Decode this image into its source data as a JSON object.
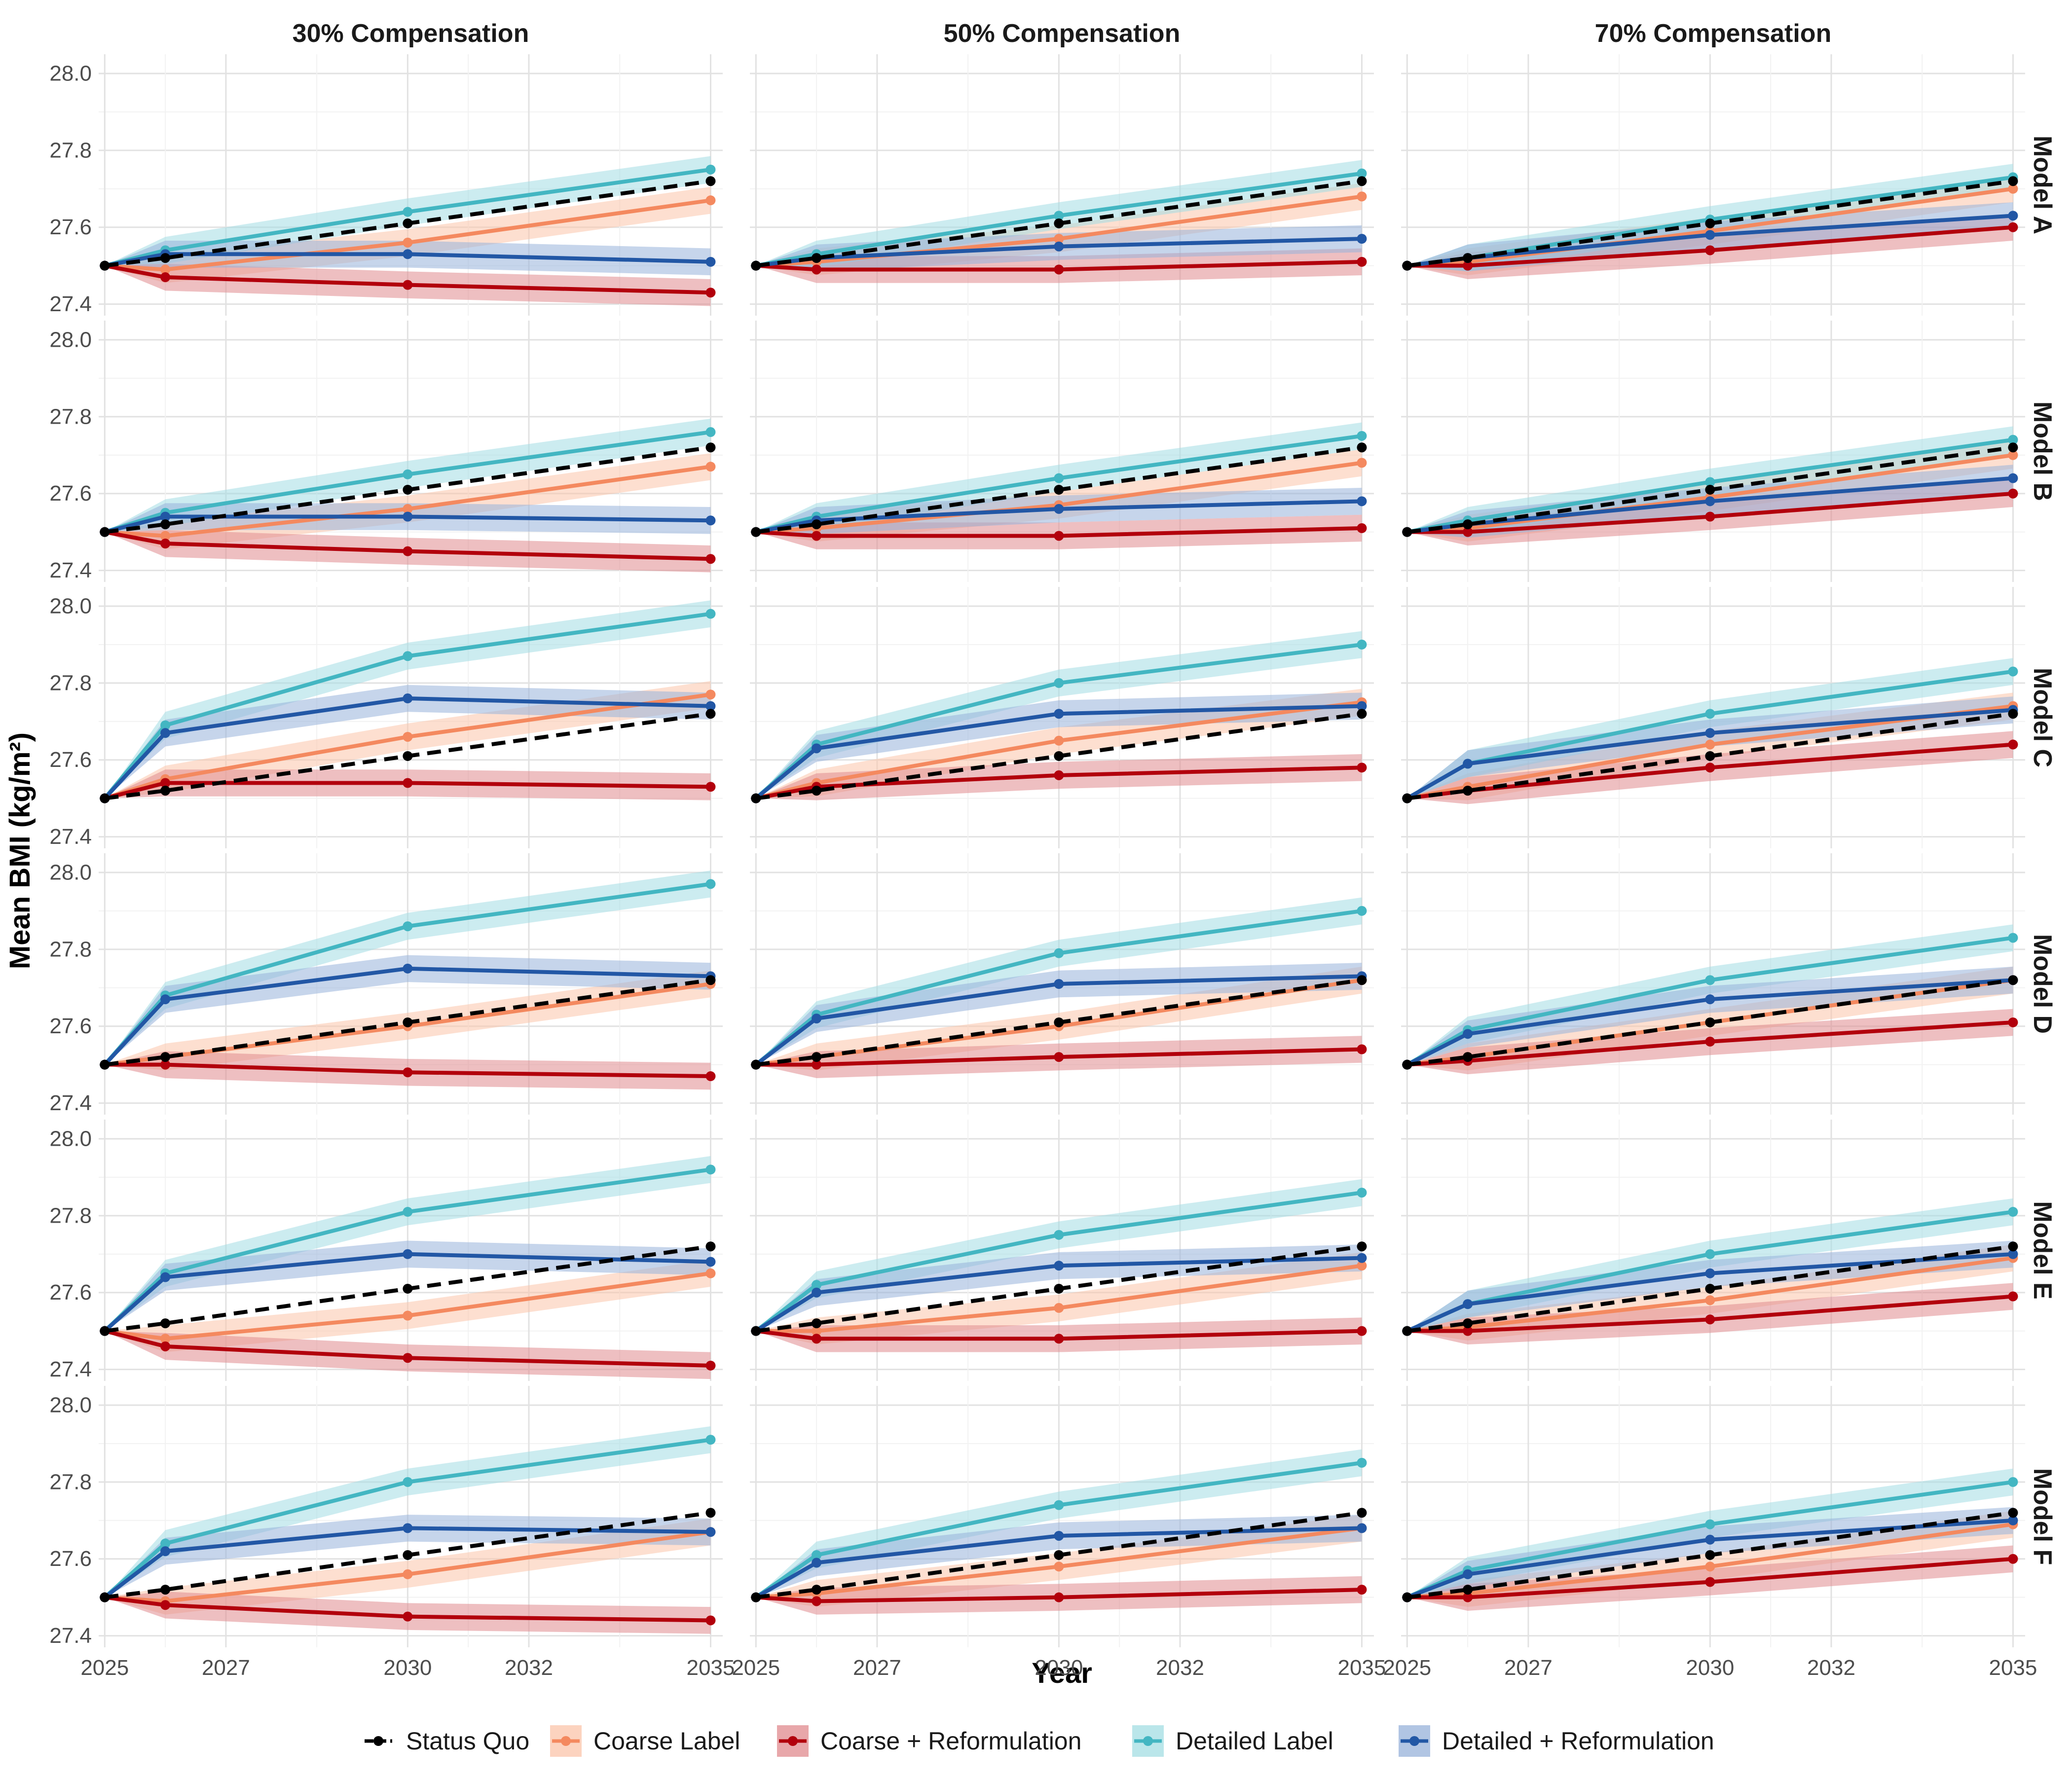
{
  "chart_data": {
    "type": "line",
    "xlabel": "Year",
    "ylabel": "Mean BMI (kg/m²)",
    "x": [
      2025,
      2026,
      2030,
      2035
    ],
    "xticks": [
      "2025",
      "2027",
      "2030",
      "2032",
      "2035"
    ],
    "xtick_values": [
      2025,
      2027,
      2030,
      2032,
      2035
    ],
    "xlim": [
      2024.9,
      2035.2
    ],
    "ylim": [
      27.37,
      28.05
    ],
    "yticks": [
      "27.4",
      "27.6",
      "27.8",
      "28.0"
    ],
    "ytick_values": [
      27.4,
      27.6,
      27.8,
      28.0
    ],
    "grid": true,
    "legend_position": "bottom",
    "ribbon_halfwidth": 0.035,
    "columns": [
      "30% Compensation",
      "50% Compensation",
      "70% Compensation"
    ],
    "rows": [
      "Model A",
      "Model B",
      "Model C",
      "Model D",
      "Model E",
      "Model F"
    ],
    "series_styles": [
      {
        "name": "Status Quo",
        "color": "#000000",
        "dashed": true,
        "ribbon": false
      },
      {
        "name": "Coarse Label",
        "color": "#F4895F",
        "dashed": false,
        "ribbon": true,
        "ribbon_color": "#FBC4A9"
      },
      {
        "name": "Coarse + Reformulation",
        "color": "#B2000C",
        "dashed": false,
        "ribbon": true,
        "ribbon_color": "#E08A8E"
      },
      {
        "name": "Detailed Label",
        "color": "#43B6C2",
        "dashed": false,
        "ribbon": true,
        "ribbon_color": "#A3DDE3"
      },
      {
        "name": "Detailed + Reformulation",
        "color": "#2257A5",
        "dashed": false,
        "ribbon": true,
        "ribbon_color": "#97B2DA"
      }
    ],
    "panels": [
      [
        {
          "Status Quo": [
            27.5,
            27.52,
            27.61,
            27.72
          ],
          "Coarse Label": [
            27.5,
            27.49,
            27.56,
            27.67
          ],
          "Coarse + Reformulation": [
            27.5,
            27.47,
            27.45,
            27.43
          ],
          "Detailed Label": [
            27.5,
            27.54,
            27.64,
            27.75
          ],
          "Detailed + Reformulation": [
            27.5,
            27.53,
            27.53,
            27.51
          ]
        },
        {
          "Status Quo": [
            27.5,
            27.52,
            27.61,
            27.72
          ],
          "Coarse Label": [
            27.5,
            27.51,
            27.57,
            27.68
          ],
          "Coarse + Reformulation": [
            27.5,
            27.49,
            27.49,
            27.51
          ],
          "Detailed Label": [
            27.5,
            27.53,
            27.63,
            27.74
          ],
          "Detailed + Reformulation": [
            27.5,
            27.52,
            27.55,
            27.57
          ]
        },
        {
          "Status Quo": [
            27.5,
            27.52,
            27.61,
            27.72
          ],
          "Coarse Label": [
            27.5,
            27.51,
            27.59,
            27.7
          ],
          "Coarse + Reformulation": [
            27.5,
            27.5,
            27.54,
            27.6
          ],
          "Detailed Label": [
            27.5,
            27.52,
            27.62,
            27.73
          ],
          "Detailed + Reformulation": [
            27.5,
            27.52,
            27.58,
            27.63
          ]
        }
      ],
      [
        {
          "Status Quo": [
            27.5,
            27.52,
            27.61,
            27.72
          ],
          "Coarse Label": [
            27.5,
            27.49,
            27.56,
            27.67
          ],
          "Coarse + Reformulation": [
            27.5,
            27.47,
            27.45,
            27.43
          ],
          "Detailed Label": [
            27.5,
            27.55,
            27.65,
            27.76
          ],
          "Detailed + Reformulation": [
            27.5,
            27.54,
            27.54,
            27.53
          ]
        },
        {
          "Status Quo": [
            27.5,
            27.52,
            27.61,
            27.72
          ],
          "Coarse Label": [
            27.5,
            27.51,
            27.57,
            27.68
          ],
          "Coarse + Reformulation": [
            27.5,
            27.49,
            27.49,
            27.51
          ],
          "Detailed Label": [
            27.5,
            27.54,
            27.64,
            27.75
          ],
          "Detailed + Reformulation": [
            27.5,
            27.53,
            27.56,
            27.58
          ]
        },
        {
          "Status Quo": [
            27.5,
            27.52,
            27.61,
            27.72
          ],
          "Coarse Label": [
            27.5,
            27.51,
            27.59,
            27.7
          ],
          "Coarse + Reformulation": [
            27.5,
            27.5,
            27.54,
            27.6
          ],
          "Detailed Label": [
            27.5,
            27.53,
            27.63,
            27.74
          ],
          "Detailed + Reformulation": [
            27.5,
            27.52,
            27.58,
            27.64
          ]
        }
      ],
      [
        {
          "Status Quo": [
            27.5,
            27.52,
            27.61,
            27.72
          ],
          "Coarse Label": [
            27.5,
            27.55,
            27.66,
            27.77
          ],
          "Coarse + Reformulation": [
            27.5,
            27.54,
            27.54,
            27.53
          ],
          "Detailed Label": [
            27.5,
            27.69,
            27.87,
            27.98
          ],
          "Detailed + Reformulation": [
            27.5,
            27.67,
            27.76,
            27.74
          ]
        },
        {
          "Status Quo": [
            27.5,
            27.52,
            27.61,
            27.72
          ],
          "Coarse Label": [
            27.5,
            27.54,
            27.65,
            27.75
          ],
          "Coarse + Reformulation": [
            27.5,
            27.53,
            27.56,
            27.58
          ],
          "Detailed Label": [
            27.5,
            27.64,
            27.8,
            27.9
          ],
          "Detailed + Reformulation": [
            27.5,
            27.63,
            27.72,
            27.74
          ]
        },
        {
          "Status Quo": [
            27.5,
            27.52,
            27.61,
            27.72
          ],
          "Coarse Label": [
            27.5,
            27.53,
            27.64,
            27.74
          ],
          "Coarse + Reformulation": [
            27.5,
            27.52,
            27.58,
            27.64
          ],
          "Detailed Label": [
            27.5,
            27.59,
            27.72,
            27.83
          ],
          "Detailed + Reformulation": [
            27.5,
            27.59,
            27.67,
            27.73
          ]
        }
      ],
      [
        {
          "Status Quo": [
            27.5,
            27.52,
            27.61,
            27.72
          ],
          "Coarse Label": [
            27.5,
            27.52,
            27.6,
            27.71
          ],
          "Coarse + Reformulation": [
            27.5,
            27.5,
            27.48,
            27.47
          ],
          "Detailed Label": [
            27.5,
            27.68,
            27.86,
            27.97
          ],
          "Detailed + Reformulation": [
            27.5,
            27.67,
            27.75,
            27.73
          ]
        },
        {
          "Status Quo": [
            27.5,
            27.52,
            27.61,
            27.72
          ],
          "Coarse Label": [
            27.5,
            27.52,
            27.6,
            27.72
          ],
          "Coarse + Reformulation": [
            27.5,
            27.5,
            27.52,
            27.54
          ],
          "Detailed Label": [
            27.5,
            27.63,
            27.79,
            27.9
          ],
          "Detailed + Reformulation": [
            27.5,
            27.62,
            27.71,
            27.73
          ]
        },
        {
          "Status Quo": [
            27.5,
            27.52,
            27.61,
            27.72
          ],
          "Coarse Label": [
            27.5,
            27.52,
            27.61,
            27.72
          ],
          "Coarse + Reformulation": [
            27.5,
            27.51,
            27.56,
            27.61
          ],
          "Detailed Label": [
            27.5,
            27.59,
            27.72,
            27.83
          ],
          "Detailed + Reformulation": [
            27.5,
            27.58,
            27.67,
            27.72
          ]
        }
      ],
      [
        {
          "Status Quo": [
            27.5,
            27.52,
            27.61,
            27.72
          ],
          "Coarse Label": [
            27.5,
            27.48,
            27.54,
            27.65
          ],
          "Coarse + Reformulation": [
            27.5,
            27.46,
            27.43,
            27.41
          ],
          "Detailed Label": [
            27.5,
            27.65,
            27.81,
            27.92
          ],
          "Detailed + Reformulation": [
            27.5,
            27.64,
            27.7,
            27.68
          ]
        },
        {
          "Status Quo": [
            27.5,
            27.52,
            27.61,
            27.72
          ],
          "Coarse Label": [
            27.5,
            27.5,
            27.56,
            27.67
          ],
          "Coarse + Reformulation": [
            27.5,
            27.48,
            27.48,
            27.5
          ],
          "Detailed Label": [
            27.5,
            27.62,
            27.75,
            27.86
          ],
          "Detailed + Reformulation": [
            27.5,
            27.6,
            27.67,
            27.69
          ]
        },
        {
          "Status Quo": [
            27.5,
            27.52,
            27.61,
            27.72
          ],
          "Coarse Label": [
            27.5,
            27.51,
            27.58,
            27.69
          ],
          "Coarse + Reformulation": [
            27.5,
            27.5,
            27.53,
            27.59
          ],
          "Detailed Label": [
            27.5,
            27.57,
            27.7,
            27.81
          ],
          "Detailed + Reformulation": [
            27.5,
            27.57,
            27.65,
            27.7
          ]
        }
      ],
      [
        {
          "Status Quo": [
            27.5,
            27.52,
            27.61,
            27.72
          ],
          "Coarse Label": [
            27.5,
            27.49,
            27.56,
            27.67
          ],
          "Coarse + Reformulation": [
            27.5,
            27.48,
            27.45,
            27.44
          ],
          "Detailed Label": [
            27.5,
            27.64,
            27.8,
            27.91
          ],
          "Detailed + Reformulation": [
            27.5,
            27.62,
            27.68,
            27.67
          ]
        },
        {
          "Status Quo": [
            27.5,
            27.52,
            27.61,
            27.72
          ],
          "Coarse Label": [
            27.5,
            27.51,
            27.58,
            27.68
          ],
          "Coarse + Reformulation": [
            27.5,
            27.49,
            27.5,
            27.52
          ],
          "Detailed Label": [
            27.5,
            27.61,
            27.74,
            27.85
          ],
          "Detailed + Reformulation": [
            27.5,
            27.59,
            27.66,
            27.68
          ]
        },
        {
          "Status Quo": [
            27.5,
            27.52,
            27.61,
            27.72
          ],
          "Coarse Label": [
            27.5,
            27.51,
            27.58,
            27.69
          ],
          "Coarse + Reformulation": [
            27.5,
            27.5,
            27.54,
            27.6
          ],
          "Detailed Label": [
            27.5,
            27.57,
            27.69,
            27.8
          ],
          "Detailed + Reformulation": [
            27.5,
            27.56,
            27.65,
            27.7
          ]
        }
      ]
    ]
  }
}
